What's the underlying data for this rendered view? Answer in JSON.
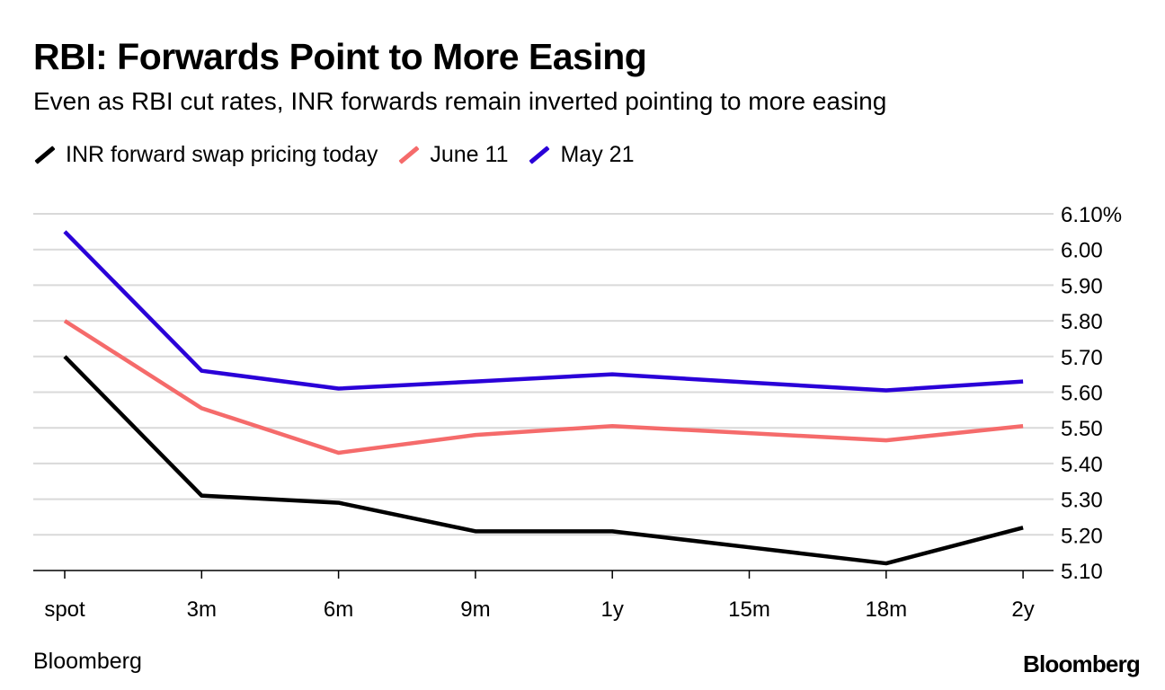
{
  "title": "RBI: Forwards Point to More Easing",
  "subtitle": "Even as RBI cut rates, INR forwards remain inverted pointing to more easing",
  "source": "Bloomberg",
  "logo": "Bloomberg",
  "chart_data": {
    "type": "line",
    "title": "RBI: Forwards Point to More Easing",
    "subtitle": "Even as RBI cut rates, INR forwards remain inverted pointing to more easing",
    "xlabel": "",
    "ylabel": "",
    "categories": [
      "spot",
      "3m",
      "6m",
      "9m",
      "1y",
      "15m",
      "18m",
      "2y"
    ],
    "ylim": [
      5.1,
      6.1
    ],
    "yticks": [
      5.1,
      5.2,
      5.3,
      5.4,
      5.5,
      5.6,
      5.7,
      5.8,
      5.9,
      6.0,
      6.1
    ],
    "ytick_labels": [
      "5.10",
      "5.20",
      "5.30",
      "5.40",
      "5.50",
      "5.60",
      "5.70",
      "5.80",
      "5.90",
      "6.00",
      "6.10%"
    ],
    "grid": true,
    "y_axis_side": "right",
    "legend_position": "top-left",
    "series": [
      {
        "name": "INR forward swap pricing today",
        "color": "#000000",
        "values": [
          5.7,
          5.31,
          5.29,
          5.21,
          5.21,
          5.165,
          5.12,
          5.22
        ]
      },
      {
        "name": "June 11",
        "color": "#f56b6b",
        "values": [
          5.8,
          5.555,
          5.43,
          5.48,
          5.505,
          5.485,
          5.465,
          5.505
        ]
      },
      {
        "name": "May 21",
        "color": "#2a00d8",
        "values": [
          6.05,
          5.66,
          5.61,
          5.63,
          5.65,
          5.627,
          5.605,
          5.63
        ]
      }
    ]
  }
}
